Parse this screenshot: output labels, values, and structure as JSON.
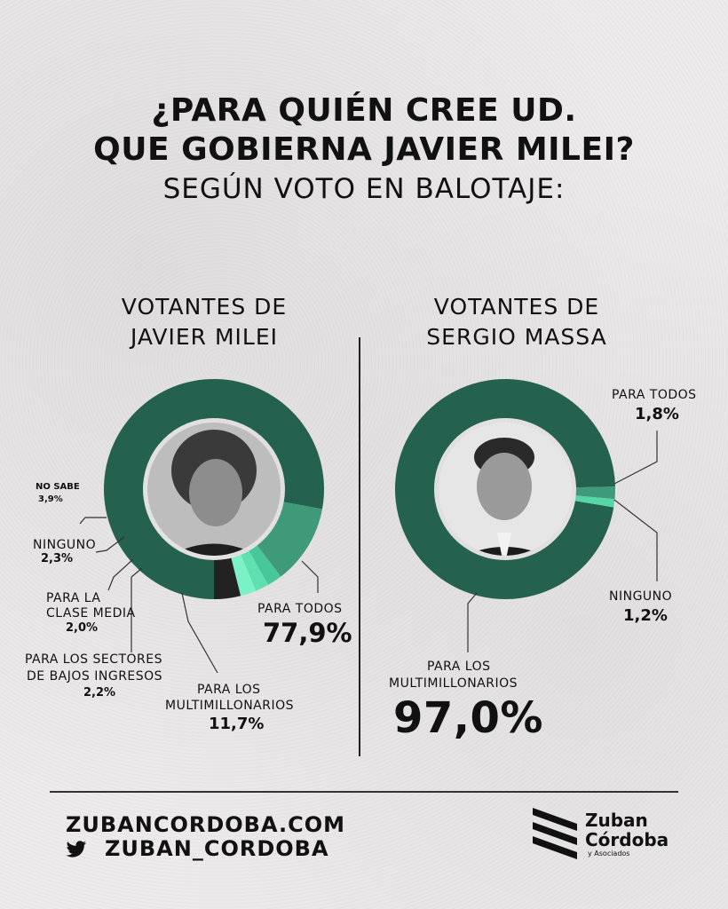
{
  "header": {
    "title_line1": "¿PARA QUIÉN CREE UD.",
    "title_line2": "QUE GOBIERNA JAVIER MILEI?",
    "subtitle": "SEGÚN VOTO EN BALOTAJE:"
  },
  "columns": {
    "left_title_line1": "VOTANTES DE",
    "left_title_line2": "JAVIER  MILEI",
    "right_title_line1": "VOTANTES DE",
    "right_title_line2": "SERGIO MASSA"
  },
  "chart_data": [
    {
      "type": "pie",
      "title": "VOTANTES DE JAVIER MILEI",
      "slices": [
        {
          "label": "PARA TODOS",
          "value": 77.9,
          "display": "77,9%",
          "color": "#24614f"
        },
        {
          "label": "PARA LOS MULTIMILLONARIOS",
          "value": 11.7,
          "display": "11,7%",
          "color": "#3e9a78"
        },
        {
          "label": "PARA LOS SECTORES DE BAJOS INGRESOS",
          "value": 2.2,
          "display": "2,2%",
          "color": "#48c79a"
        },
        {
          "label": "PARA LA CLASE MEDIA",
          "value": 2.0,
          "display": "2,0%",
          "color": "#5fe0b0"
        },
        {
          "label": "NINGUNO",
          "value": 2.3,
          "display": "2,3%",
          "color": "#7af2c6"
        },
        {
          "label": "NO SABE",
          "value": 3.9,
          "display": "3,9%",
          "color": "#222222"
        }
      ]
    },
    {
      "type": "pie",
      "title": "VOTANTES DE SERGIO MASSA",
      "slices": [
        {
          "label": "PARA LOS MULTIMILLONARIOS",
          "value": 97.0,
          "display": "97,0%",
          "color": "#24614f"
        },
        {
          "label": "PARA TODOS",
          "value": 1.8,
          "display": "1,8%",
          "color": "#3e9a78"
        },
        {
          "label": "NINGUNO",
          "value": 1.2,
          "display": "1,2%",
          "color": "#56d6a6"
        }
      ]
    }
  ],
  "labels": {
    "milei": {
      "no_sabe": "NO SABE",
      "no_sabe_pct": "3,9%",
      "ninguno": "NINGUNO",
      "ninguno_pct": "2,3%",
      "clase_media_1": "PARA LA",
      "clase_media_2": "CLASE MEDIA",
      "clase_media_pct": "2,0%",
      "bajos_1": "PARA LOS SECTORES",
      "bajos_2": "DE BAJOS INGRESOS",
      "bajos_pct": "2,2%",
      "multi_1": "PARA LOS",
      "multi_2": "MULTIMILLONARIOS",
      "multi_pct": "11,7%",
      "todos": "PARA TODOS",
      "todos_pct": "77,9%"
    },
    "massa": {
      "todos": "PARA TODOS",
      "todos_pct": "1,8%",
      "ninguno": "NINGUNO",
      "ninguno_pct": "1,2%",
      "multi_1": "PARA LOS",
      "multi_2": "MULTIMILLONARIOS",
      "multi_pct": "97,0%"
    }
  },
  "footer": {
    "website": "ZUBANCORDOBA.COM",
    "twitter": "ZUBAN_CORDOBA",
    "logo_line1": "Zuban",
    "logo_line2": "Córdoba",
    "logo_sub": "y Asociados"
  },
  "icons": {
    "twitter": "twitter-icon",
    "logo": "zuban-cordoba-logo-icon",
    "photo_left": "portrait-photo-milei",
    "photo_right": "portrait-photo-massa"
  }
}
